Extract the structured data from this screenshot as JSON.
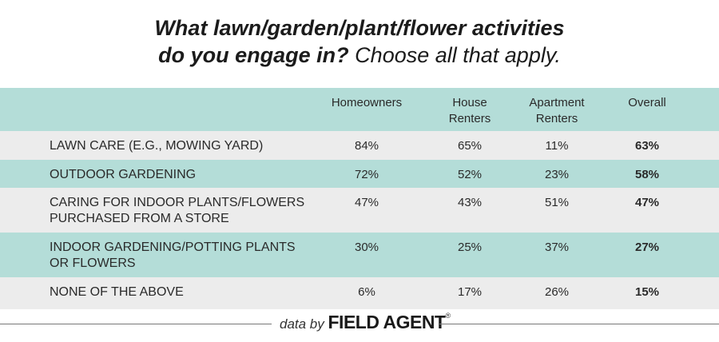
{
  "title": {
    "line1": "What lawn/garden/plant/flower activities",
    "line2_bold": "do you engage in?",
    "line2_sub": " Choose all that apply."
  },
  "chart_data": {
    "type": "table",
    "columns": [
      "Homeowners",
      "House Renters",
      "Apartment Renters",
      "Overall"
    ],
    "rows": [
      {
        "label": [
          "LAWN CARE (E.G., MOWING YARD)"
        ],
        "values": [
          "84%",
          "65%",
          "11%",
          "63%"
        ]
      },
      {
        "label": [
          "OUTDOOR GARDENING"
        ],
        "values": [
          "72%",
          "52%",
          "23%",
          "58%"
        ]
      },
      {
        "label": [
          "CARING FOR INDOOR PLANTS/FLOWERS",
          "PURCHASED FROM A STORE"
        ],
        "values": [
          "47%",
          "43%",
          "51%",
          "47%"
        ]
      },
      {
        "label": [
          "INDOOR GARDENING/POTTING PLANTS",
          "OR FLOWERS"
        ],
        "values": [
          "30%",
          "25%",
          "37%",
          "27%"
        ]
      },
      {
        "label": [
          "NONE OF THE ABOVE"
        ],
        "values": [
          "6%",
          "17%",
          "26%",
          "15%"
        ]
      }
    ],
    "row_colors": [
      "#ececec",
      "#b4ddd8",
      "#ececec",
      "#b4ddd8",
      "#ececec"
    ],
    "header_color": "#b4ddd8"
  },
  "footer": {
    "data_by": "data by",
    "brand": "FIELD AGENT",
    "reg": "®"
  }
}
